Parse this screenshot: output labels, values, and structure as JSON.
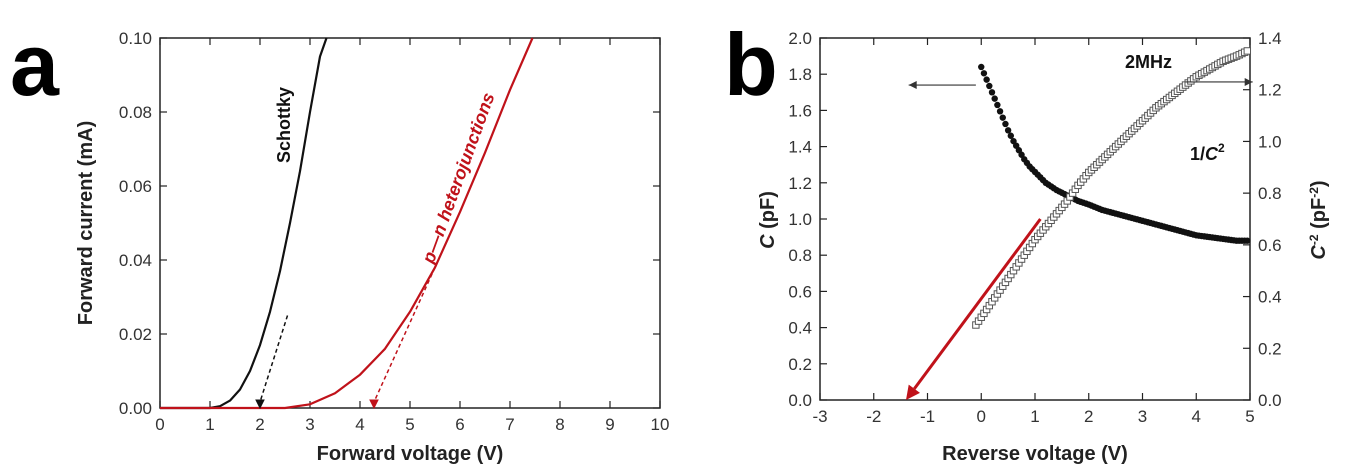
{
  "chart_data": [
    {
      "panel_label": "a",
      "type": "line",
      "xlabel": "Forward voltage (V)",
      "ylabel": "Forward current (mA)",
      "xlim": [
        0,
        10
      ],
      "ylim": [
        0,
        0.1
      ],
      "xticks": [
        "0",
        "1",
        "2",
        "3",
        "4",
        "5",
        "6",
        "7",
        "8",
        "9",
        "10"
      ],
      "yticks": [
        "0.00",
        "0.02",
        "0.04",
        "0.06",
        "0.08",
        "0.10"
      ],
      "grid": false,
      "series": [
        {
          "name": "Schottky",
          "color": "#111111",
          "x": [
            0,
            1.0,
            1.2,
            1.4,
            1.6,
            1.8,
            2.0,
            2.2,
            2.4,
            2.6,
            2.8,
            3.0,
            3.2,
            3.33
          ],
          "y": [
            0,
            0,
            0.0005,
            0.002,
            0.005,
            0.01,
            0.017,
            0.026,
            0.037,
            0.05,
            0.064,
            0.08,
            0.095,
            0.1
          ]
        },
        {
          "name": "p—n heterojunctions",
          "color": "#c0121a",
          "x": [
            0,
            2.5,
            3.0,
            3.5,
            4.0,
            4.5,
            5.0,
            5.5,
            6.0,
            6.5,
            7.0,
            7.45
          ],
          "y": [
            0,
            0,
            0.001,
            0.004,
            0.009,
            0.016,
            0.026,
            0.038,
            0.053,
            0.069,
            0.086,
            0.1
          ]
        }
      ],
      "tangents": [
        {
          "color": "#111111",
          "x": [
            2.55,
            2.0
          ],
          "y": [
            0.025,
            0.0
          ]
        },
        {
          "color": "#c0121a",
          "x": [
            5.5,
            4.28
          ],
          "y": [
            0.038,
            0.0
          ]
        }
      ],
      "annotations": [
        "Schottky",
        "p—n heterojunctions"
      ]
    },
    {
      "panel_label": "b",
      "type": "scatter",
      "xlabel": "Reverse voltage (V)",
      "ylabel": "C (pF)",
      "y2label": "C-2 (pF-2)",
      "xlim": [
        -3,
        5
      ],
      "ylim": [
        0,
        2.0
      ],
      "y2lim": [
        0,
        1.4
      ],
      "xticks": [
        "-3",
        "-2",
        "-1",
        "0",
        "1",
        "2",
        "3",
        "4",
        "5"
      ],
      "yticks": [
        "0.0",
        "0.2",
        "0.4",
        "0.6",
        "0.8",
        "1.0",
        "1.2",
        "1.4",
        "1.6",
        "1.8",
        "2.0"
      ],
      "y2ticks": [
        "0.0",
        "0.2",
        "0.4",
        "0.6",
        "0.8",
        "1.0",
        "1.2",
        "1.4"
      ],
      "grid": false,
      "series": [
        {
          "name": "C",
          "axis": "left",
          "marker": "filled-circle",
          "color": "#111111",
          "x": [
            0.0,
            0.1,
            0.2,
            0.3,
            0.4,
            0.5,
            0.6,
            0.7,
            0.8,
            0.9,
            1.0,
            1.2,
            1.4,
            1.6,
            1.8,
            2.0,
            2.25,
            2.5,
            2.75,
            3.0,
            3.25,
            3.5,
            3.75,
            4.0,
            4.25,
            4.5,
            4.75,
            4.95
          ],
          "y": [
            1.84,
            1.77,
            1.7,
            1.63,
            1.56,
            1.49,
            1.43,
            1.38,
            1.33,
            1.29,
            1.26,
            1.2,
            1.16,
            1.13,
            1.1,
            1.08,
            1.05,
            1.03,
            1.01,
            0.99,
            0.97,
            0.95,
            0.93,
            0.91,
            0.9,
            0.89,
            0.88,
            0.88
          ]
        },
        {
          "name": "1/C²",
          "axis": "right",
          "marker": "open-square",
          "color": "#555555",
          "x": [
            -0.1,
            0.0,
            0.1,
            0.2,
            0.3,
            0.4,
            0.5,
            0.6,
            0.7,
            0.8,
            0.9,
            1.0,
            1.2,
            1.4,
            1.6,
            1.8,
            2.0,
            2.25,
            2.5,
            2.75,
            3.0,
            3.25,
            3.5,
            3.75,
            4.0,
            4.25,
            4.5,
            4.75,
            4.95
          ],
          "y": [
            0.29,
            0.32,
            0.35,
            0.38,
            0.41,
            0.44,
            0.47,
            0.5,
            0.53,
            0.56,
            0.59,
            0.62,
            0.67,
            0.72,
            0.77,
            0.83,
            0.88,
            0.93,
            0.98,
            1.03,
            1.08,
            1.13,
            1.17,
            1.21,
            1.25,
            1.28,
            1.31,
            1.33,
            1.35
          ]
        }
      ],
      "fit_line": {
        "color": "#c0121a",
        "x": [
          1.1,
          -1.4
        ],
        "y2": [
          0.7,
          0.0
        ]
      },
      "arrows": [
        {
          "points_to": "left-axis",
          "x": [
            -0.1,
            -1.35
          ],
          "y": [
            1.74,
            1.74
          ]
        },
        {
          "points_to": "right-axis",
          "x": [
            3.8,
            5.05
          ],
          "y": [
            1.23,
            1.23
          ]
        }
      ],
      "annotations": [
        "2MHz",
        "1/C²"
      ]
    }
  ]
}
